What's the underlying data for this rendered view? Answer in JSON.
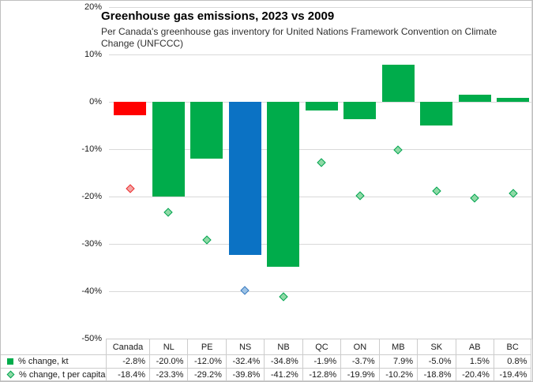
{
  "chart_data": {
    "type": "bar",
    "title": "Greenhouse gas emissions, 2023 vs 2009",
    "subtitle": "Per Canada's greenhouse gas inventory for United Nations Framework Convention on Climate Change (UNFCCC)",
    "categories": [
      "Canada",
      "NL",
      "PE",
      "NS",
      "NB",
      "QC",
      "ON",
      "MB",
      "SK",
      "AB",
      "BC"
    ],
    "series": [
      {
        "name": "% change, kt",
        "type": "bar",
        "values": [
          -2.8,
          -20.0,
          -12.0,
          -32.4,
          -34.8,
          -1.9,
          -3.7,
          7.9,
          -5.0,
          1.5,
          0.8
        ],
        "color_default": "#00AC4B",
        "color_overrides": {
          "Canada": "#FF0000",
          "NS": "#0B72C4"
        }
      },
      {
        "name": "% change, t per capita",
        "type": "scatter",
        "marker": "diamond",
        "values": [
          -18.4,
          -23.3,
          -29.2,
          -39.8,
          -41.2,
          -12.8,
          -19.9,
          -10.2,
          -18.8,
          -20.4,
          -19.4
        ],
        "marker_default": {
          "fill": "#8FD9A6",
          "border": "#00A550"
        },
        "marker_overrides": {
          "Canada": {
            "fill": "#F2A5A5",
            "border": "#EE2C2C"
          },
          "NS": {
            "fill": "#9DC3E6",
            "border": "#3A7ABF"
          }
        }
      }
    ],
    "ylim": [
      -50,
      20
    ],
    "yticks": [
      20,
      10,
      0,
      -10,
      -20,
      -30,
      -40,
      -50
    ],
    "ytick_suffix": "%",
    "value_suffix": "%",
    "value_decimals": 1,
    "grid": true,
    "legend_position": "bottom table"
  }
}
